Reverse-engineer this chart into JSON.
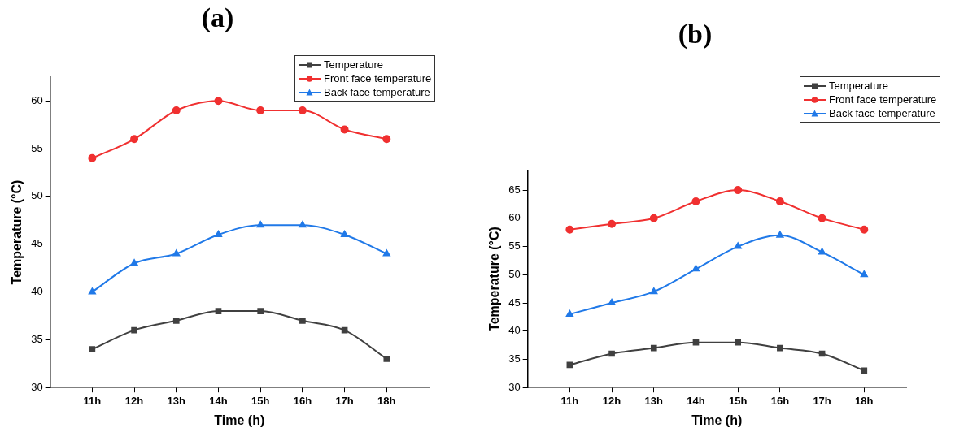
{
  "chart_data": [
    {
      "type": "line",
      "title": "(a)",
      "xlabel": "Time (h)",
      "ylabel": "Temperature (°C)",
      "categories": [
        "11h",
        "12h",
        "13h",
        "14h",
        "15h",
        "16h",
        "17h",
        "18h"
      ],
      "ylim": [
        30,
        62.5
      ],
      "yticks": [
        30,
        35,
        40,
        45,
        50,
        55,
        60
      ],
      "grid": false,
      "legend": "top right",
      "series": [
        {
          "name": "Temperature",
          "color": "#404040",
          "marker": "square",
          "values": [
            34,
            36,
            37,
            38,
            38,
            37,
            36,
            33
          ]
        },
        {
          "name": "Front face temperature",
          "color": "#f03030",
          "marker": "circle",
          "values": [
            54,
            56,
            59,
            60,
            59,
            59,
            57,
            56
          ]
        },
        {
          "name": "Back face temperature",
          "color": "#2079e8",
          "marker": "triangle",
          "values": [
            40,
            43,
            44,
            46,
            47,
            47,
            46,
            44
          ]
        }
      ]
    },
    {
      "type": "line",
      "title": "(b)",
      "xlabel": "Time (h)",
      "ylabel": "Temperature (°C)",
      "categories": [
        "11h",
        "12h",
        "13h",
        "14h",
        "15h",
        "16h",
        "17h",
        "18h"
      ],
      "ylim": [
        30,
        68.5
      ],
      "yticks": [
        30,
        35,
        40,
        45,
        50,
        55,
        60,
        65
      ],
      "grid": false,
      "legend": "top right",
      "series": [
        {
          "name": "Temperature",
          "color": "#404040",
          "marker": "square",
          "values": [
            34,
            36,
            37,
            38,
            38,
            37,
            36,
            33
          ]
        },
        {
          "name": "Front face temperature",
          "color": "#f03030",
          "marker": "circle",
          "values": [
            58,
            59,
            60,
            63,
            65,
            63,
            60,
            58
          ]
        },
        {
          "name": "Back face temperature",
          "color": "#2079e8",
          "marker": "triangle",
          "values": [
            43,
            45,
            47,
            51,
            55,
            57,
            54,
            50
          ]
        }
      ]
    }
  ]
}
